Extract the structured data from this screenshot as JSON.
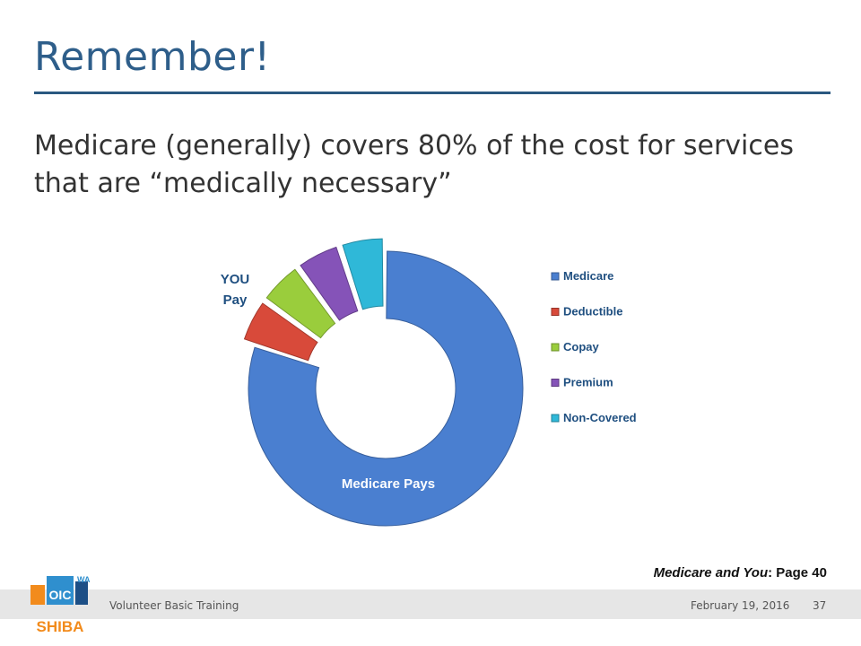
{
  "slide": {
    "title": "Remember!",
    "body": "Medicare (generally) covers 80% of the cost for services that are “medically necessary”"
  },
  "chart_data": {
    "type": "pie",
    "variant": "donut",
    "categories": [
      "Medicare",
      "Deductible",
      "Copay",
      "Premium",
      "Non-Covered"
    ],
    "values": [
      80,
      5,
      5,
      5,
      5
    ],
    "colors": [
      "#4a7fd0",
      "#d84a3a",
      "#9acd3c",
      "#8553b8",
      "#2fb8d8"
    ],
    "annotations": [
      "YOU Pay",
      "Medicare Pays"
    ],
    "legend": "right"
  },
  "reference": {
    "italic": "Medicare and You",
    "rest": ": Page 40"
  },
  "footer": {
    "left": "Volunteer Basic Training",
    "date": "February 19, 2016",
    "page": "37"
  },
  "logo": {
    "text_top": "WA",
    "text_mid": "OIC",
    "text_bottom": "SHIBA",
    "colors": {
      "orange": "#f28b1c",
      "blue": "#2f8fce",
      "darkblue": "#1d4f86"
    }
  }
}
